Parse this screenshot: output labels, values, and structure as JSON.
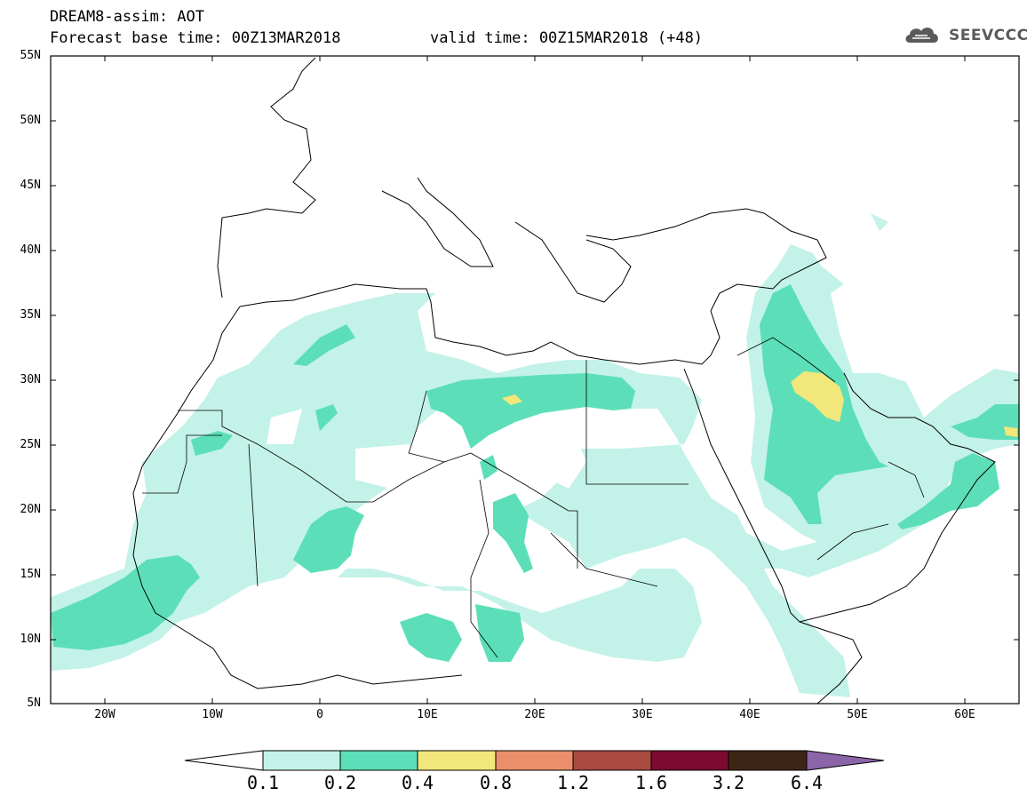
{
  "header": {
    "title_line1": "DREAM8-assim: AOT",
    "title_line2": "Forecast base time: 00Z13MAR2018",
    "valid_time": "valid time: 00Z15MAR2018 (+48)",
    "logo_text": "SEEVCCC",
    "logo_icon": "cloud-logo-icon"
  },
  "map": {
    "lat_labels": [
      "55N",
      "50N",
      "45N",
      "40N",
      "35N",
      "30N",
      "25N",
      "20N",
      "15N",
      "10N",
      "5N"
    ],
    "lon_labels": [
      "20W",
      "10W",
      "0",
      "10E",
      "20E",
      "30E",
      "40E",
      "50E",
      "60E"
    ],
    "lat_range": [
      5,
      55
    ],
    "lon_range": [
      -25,
      65
    ]
  },
  "colorbar": {
    "labels": [
      "0.1",
      "0.2",
      "0.4",
      "0.8",
      "1.2",
      "1.6",
      "3.2",
      "6.4"
    ],
    "colors": [
      "#c3f2e8",
      "#5cdfb8",
      "#f2e77a",
      "#ea8f69",
      "#a84a42",
      "#7d0a30",
      "#3e2616",
      "#8c64a8"
    ]
  }
}
